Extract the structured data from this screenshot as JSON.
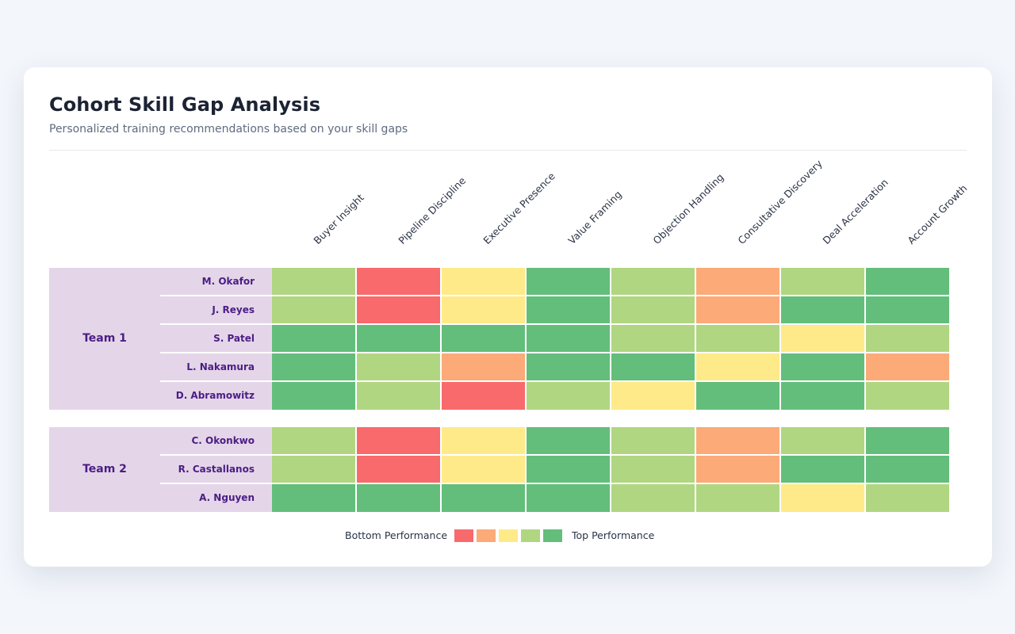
{
  "header": {
    "title": "Cohort Skill Gap Analysis",
    "subtitle": "Personalized training recommendations based on your skill gaps"
  },
  "chart_data": {
    "type": "heatmap",
    "title": "Cohort Skill Gap Analysis",
    "subtitle": "Personalized training recommendations based on your skill gaps",
    "columns": [
      "Buyer Insight",
      "Pipeline Discipline",
      "Executive Presence",
      "Value Framing",
      "Objection Handling",
      "Consultative Discovery",
      "Deal Acceleration",
      "Account Growth"
    ],
    "scale": {
      "levels": 5,
      "colors": [
        "#f86a6c",
        "#fbaa78",
        "#feea88",
        "#b1d682",
        "#63be7b"
      ],
      "min_label": "Bottom Performance",
      "max_label": "Top Performance"
    },
    "groups": [
      {
        "name": "Team 1",
        "rows": [
          {
            "name": "M. Okafor",
            "values": [
              4,
              1,
              3,
              5,
              4,
              2,
              4,
              5
            ]
          },
          {
            "name": "J. Reyes",
            "values": [
              4,
              1,
              3,
              5,
              4,
              2,
              5,
              5
            ]
          },
          {
            "name": "S. Patel",
            "values": [
              5,
              5,
              5,
              5,
              4,
              4,
              3,
              4
            ]
          },
          {
            "name": "L. Nakamura",
            "values": [
              5,
              4,
              2,
              5,
              5,
              3,
              5,
              2
            ]
          },
          {
            "name": "D. Abramowitz",
            "values": [
              5,
              4,
              1,
              4,
              3,
              5,
              5,
              4
            ]
          }
        ]
      },
      {
        "name": "Team 2",
        "rows": [
          {
            "name": "C. Okonkwo",
            "values": [
              4,
              1,
              3,
              5,
              4,
              2,
              4,
              5
            ]
          },
          {
            "name": "R. Castallanos",
            "values": [
              4,
              1,
              3,
              5,
              4,
              2,
              5,
              5
            ]
          },
          {
            "name": "A. Nguyen",
            "values": [
              5,
              5,
              5,
              5,
              4,
              4,
              3,
              4
            ]
          }
        ]
      }
    ]
  }
}
